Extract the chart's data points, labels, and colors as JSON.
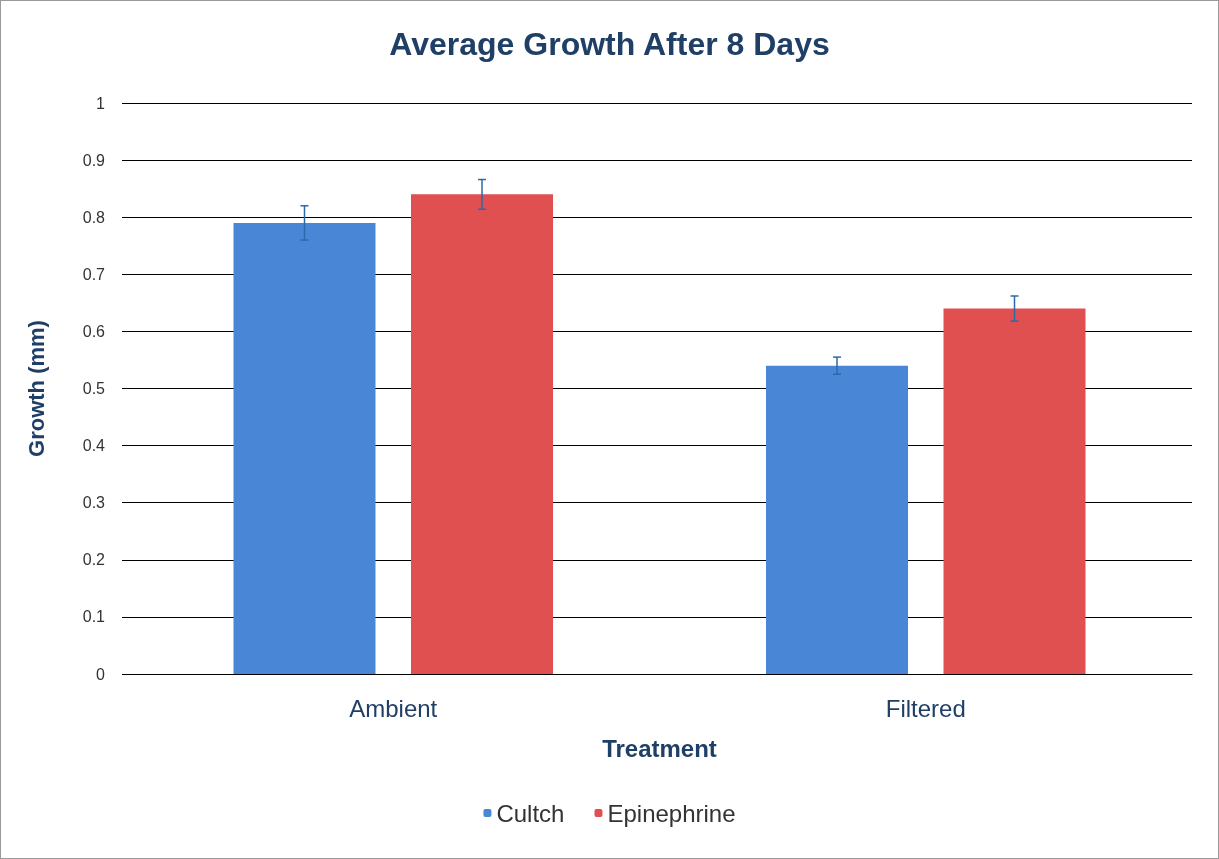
{
  "chart_data": {
    "type": "bar",
    "title": "Average Growth After 8 Days",
    "xlabel": "Treatment",
    "ylabel": "Growth (mm)",
    "categories": [
      "Ambient",
      "Filtered"
    ],
    "series": [
      {
        "name": "Cultch",
        "color": "#4a86d6",
        "values": [
          0.79,
          0.54
        ],
        "errors": [
          0.03,
          0.015
        ]
      },
      {
        "name": "Epinephrine",
        "color": "#e05050",
        "values": [
          0.84,
          0.64
        ],
        "errors": [
          0.026,
          0.022
        ]
      }
    ],
    "ylim": [
      0,
      1
    ],
    "yticks": [
      0,
      0.1,
      0.2,
      0.3,
      0.4,
      0.5,
      0.6,
      0.7,
      0.8,
      0.9,
      1
    ],
    "grid": "y",
    "legend": "bottom"
  }
}
